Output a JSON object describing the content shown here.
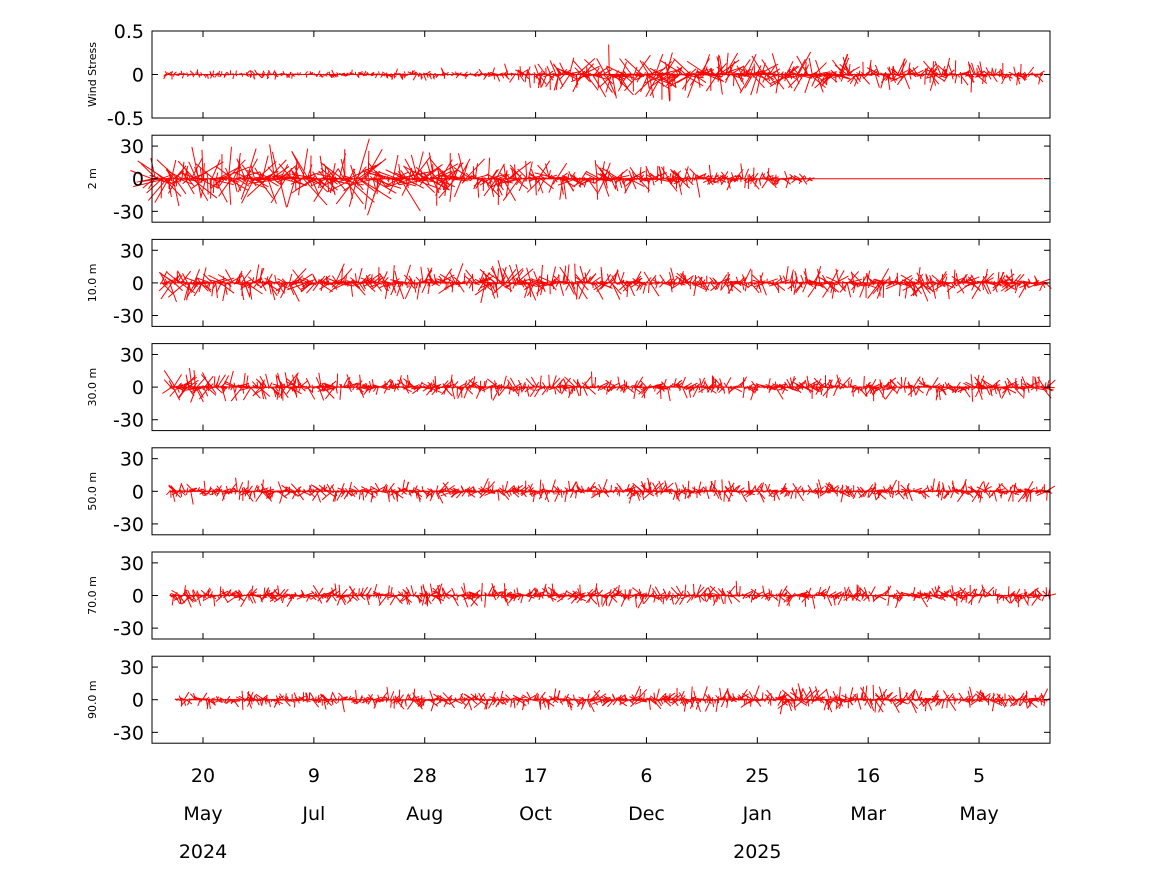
{
  "chart_data": {
    "type": "line",
    "description_type": "stick-plot",
    "color": "#ff0000",
    "x_axis": {
      "range": [
        "2024-04-27",
        "2025-06-06"
      ],
      "ticks": [
        {
          "date": "2024-05-20",
          "day": "20",
          "month": "May",
          "year": "2024"
        },
        {
          "date": "2024-07-09",
          "day": "9",
          "month": "Jul",
          "year": ""
        },
        {
          "date": "2024-08-28",
          "day": "28",
          "month": "Aug",
          "year": ""
        },
        {
          "date": "2024-10-17",
          "day": "17",
          "month": "Oct",
          "year": ""
        },
        {
          "date": "2024-12-06",
          "day": "6",
          "month": "Dec",
          "year": ""
        },
        {
          "date": "2025-01-25",
          "day": "25",
          "month": "Jan",
          "year": "2025"
        },
        {
          "date": "2025-03-16",
          "day": "16",
          "month": "Mar",
          "year": ""
        },
        {
          "date": "2025-05-05",
          "day": "5",
          "month": "May",
          "year": ""
        }
      ]
    },
    "panels": [
      {
        "ylabel": "Wind Stress",
        "ylim": [
          -0.5,
          0.5
        ],
        "yticks": [
          {
            "value": 0.5,
            "label": "0.5"
          },
          {
            "value": 0,
            "label": "0"
          },
          {
            "value": -0.5,
            "label": "-0.5"
          }
        ],
        "data_start": "2024-05-03",
        "data_end": "2025-06-03",
        "envelope": [
          {
            "date": "2024-05-03",
            "amp": 0.06
          },
          {
            "date": "2024-09-15",
            "amp": 0.07
          },
          {
            "date": "2024-10-10",
            "amp": 0.12
          },
          {
            "date": "2024-11-15",
            "amp": 0.28
          },
          {
            "date": "2024-12-20",
            "amp": 0.32
          },
          {
            "date": "2025-01-10",
            "amp": 0.25
          },
          {
            "date": "2025-02-05",
            "amp": 0.3
          },
          {
            "date": "2025-03-15",
            "amp": 0.2
          },
          {
            "date": "2025-04-25",
            "amp": 0.18
          },
          {
            "date": "2025-06-03",
            "amp": 0.12
          }
        ]
      },
      {
        "ylabel": "2 m",
        "ylim": [
          -40,
          40
        ],
        "yticks": [
          {
            "value": 30,
            "label": "30"
          },
          {
            "value": 0,
            "label": "0"
          },
          {
            "value": -30,
            "label": "-30"
          }
        ],
        "data_start": "2024-04-27",
        "data_end": "2025-02-19",
        "flat_until": "2025-06-03",
        "envelope": [
          {
            "date": "2024-04-27",
            "amp": 28
          },
          {
            "date": "2024-06-15",
            "amp": 26
          },
          {
            "date": "2024-08-01",
            "amp": 32
          },
          {
            "date": "2024-09-15",
            "amp": 24
          },
          {
            "date": "2024-11-01",
            "amp": 20
          },
          {
            "date": "2024-12-15",
            "amp": 16
          },
          {
            "date": "2025-01-15",
            "amp": 12
          },
          {
            "date": "2025-02-19",
            "amp": 6
          }
        ]
      },
      {
        "ylabel": "10.0 m",
        "ylim": [
          -40,
          40
        ],
        "yticks": [
          {
            "value": 30,
            "label": "30"
          },
          {
            "value": 0,
            "label": "0"
          },
          {
            "value": -30,
            "label": "-30"
          }
        ],
        "data_start": "2024-05-01",
        "data_end": "2025-06-05",
        "envelope": [
          {
            "date": "2024-05-01",
            "amp": 18
          },
          {
            "date": "2024-08-01",
            "amp": 16
          },
          {
            "date": "2024-10-15",
            "amp": 18
          },
          {
            "date": "2025-01-01",
            "amp": 12
          },
          {
            "date": "2025-03-20",
            "amp": 16
          },
          {
            "date": "2025-06-05",
            "amp": 14
          }
        ]
      },
      {
        "ylabel": "30.0 m",
        "ylim": [
          -40,
          40
        ],
        "yticks": [
          {
            "value": 30,
            "label": "30"
          },
          {
            "value": 0,
            "label": "0"
          },
          {
            "value": -30,
            "label": "-30"
          }
        ],
        "data_start": "2024-05-05",
        "data_end": "2025-06-06",
        "envelope": [
          {
            "date": "2024-05-05",
            "amp": 18
          },
          {
            "date": "2024-08-01",
            "amp": 12
          },
          {
            "date": "2024-11-01",
            "amp": 12
          },
          {
            "date": "2025-02-01",
            "amp": 11
          },
          {
            "date": "2025-06-06",
            "amp": 14
          }
        ]
      },
      {
        "ylabel": "50.0 m",
        "ylim": [
          -40,
          40
        ],
        "yticks": [
          {
            "value": 30,
            "label": "30"
          },
          {
            "value": 0,
            "label": "0"
          },
          {
            "value": -30,
            "label": "-30"
          }
        ],
        "data_start": "2024-05-05",
        "data_end": "2025-06-06",
        "envelope": [
          {
            "date": "2024-05-05",
            "amp": 10
          },
          {
            "date": "2024-10-01",
            "amp": 11
          },
          {
            "date": "2025-02-01",
            "amp": 10
          },
          {
            "date": "2025-06-06",
            "amp": 11
          }
        ]
      },
      {
        "ylabel": "70.0 m",
        "ylim": [
          -40,
          40
        ],
        "yticks": [
          {
            "value": 30,
            "label": "30"
          },
          {
            "value": 0,
            "label": "0"
          },
          {
            "value": -30,
            "label": "-30"
          }
        ],
        "data_start": "2024-05-05",
        "data_end": "2025-06-06",
        "envelope": [
          {
            "date": "2024-05-05",
            "amp": 10
          },
          {
            "date": "2024-10-01",
            "amp": 12
          },
          {
            "date": "2025-02-01",
            "amp": 11
          },
          {
            "date": "2025-06-06",
            "amp": 10
          }
        ]
      },
      {
        "ylabel": "90.0 m",
        "ylim": [
          -40,
          40
        ],
        "yticks": [
          {
            "value": 30,
            "label": "30"
          },
          {
            "value": 0,
            "label": "0"
          },
          {
            "value": -30,
            "label": "-30"
          }
        ],
        "data_start": "2024-05-08",
        "data_end": "2025-06-05",
        "envelope": [
          {
            "date": "2024-05-08",
            "amp": 9
          },
          {
            "date": "2024-10-15",
            "amp": 10
          },
          {
            "date": "2024-12-10",
            "amp": 12
          },
          {
            "date": "2025-03-10",
            "amp": 13
          },
          {
            "date": "2025-06-05",
            "amp": 10
          }
        ]
      }
    ]
  }
}
